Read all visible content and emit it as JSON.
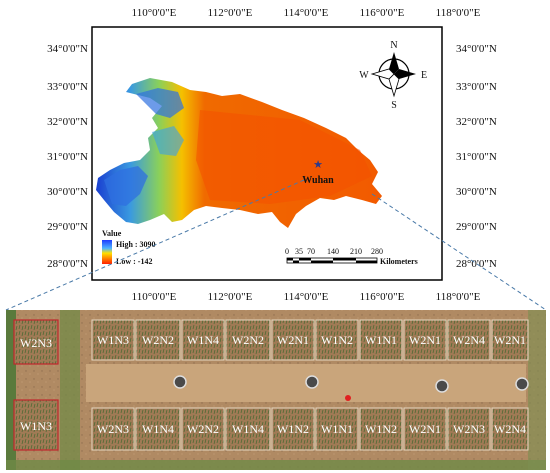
{
  "map": {
    "lon_ticks_top": [
      "110°0'0\"E",
      "112°0'0\"E",
      "114°0'0\"E",
      "116°0'0\"E",
      "118°0'0\"E"
    ],
    "lon_ticks_bottom": [
      "110°0'0\"E",
      "112°0'0\"E",
      "114°0'0\"E",
      "116°0'0\"E",
      "118°0'0\"E"
    ],
    "lat_ticks_left": [
      "34°0'0\"N",
      "33°0'0\"N",
      "32°0'0\"N",
      "31°0'0\"N",
      "30°0'0\"N",
      "29°0'0\"N",
      "28°0'0\"N"
    ],
    "lat_ticks_right": [
      "34°0'0\"N",
      "33°0'0\"N",
      "32°0'0\"N",
      "31°0'0\"N",
      "30°0'0\"N",
      "29°0'0\"N",
      "28°0'0\"N"
    ],
    "city_label": "Wuhan",
    "north_arrow": {
      "n": "N",
      "s": "S",
      "e": "E",
      "w": "W"
    },
    "legend": {
      "title": "Value",
      "high": "High : 3090",
      "low": "Low : -142"
    },
    "scale_bar": {
      "ticks": [
        "0",
        "35",
        "70",
        "140",
        "210",
        "280"
      ],
      "unit": "Kilometers"
    }
  },
  "field": {
    "top_row": [
      "W1N3",
      "W2N2",
      "W1N4",
      "W2N2",
      "W2N1",
      "W1N2",
      "W1N1",
      "W2N1",
      "W2N4",
      "W2N1"
    ],
    "bottom_row": [
      "W2N3",
      "W1N4",
      "W2N2",
      "W1N4",
      "W1N2",
      "W1N1",
      "W1N2",
      "W2N1",
      "W2N3",
      "W2N4"
    ],
    "left_plots": [
      "W2N3",
      "W1N3"
    ]
  },
  "colors": {
    "dem_high": "#1a3fd1",
    "dem_mid": "#f0a000",
    "dem_low": "#f04b00",
    "field": "#a9805d"
  }
}
